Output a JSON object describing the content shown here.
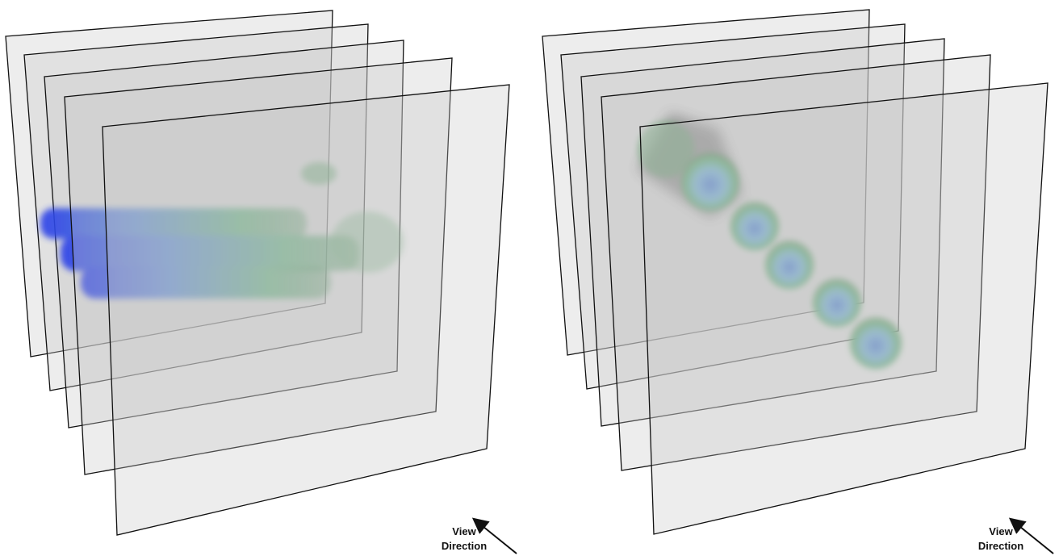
{
  "panels": [
    {
      "label": {
        "line1": "View",
        "line2": "Direction"
      }
    },
    {
      "label": {
        "line1": "View",
        "line2": "Direction"
      }
    }
  ]
}
